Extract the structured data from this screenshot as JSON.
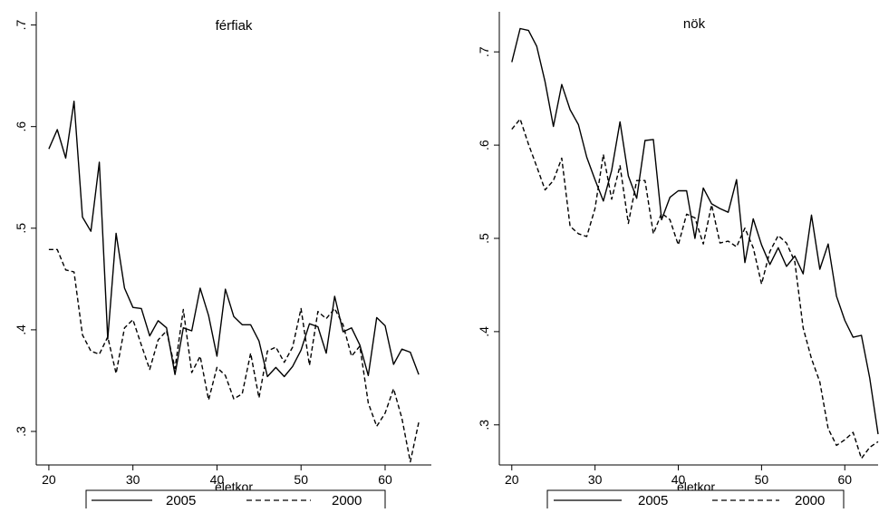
{
  "chart_data": [
    {
      "type": "line",
      "title": "férfiak",
      "xlabel": "életkor",
      "ylabel": "",
      "xlim": [
        18.5,
        65.5
      ],
      "ylim": [
        0.267,
        0.713
      ],
      "xticks": [
        20,
        30,
        40,
        50,
        60
      ],
      "xtick_labels": [
        "20",
        "30",
        "40",
        "50",
        "60"
      ],
      "yticks": [
        0.3,
        0.4,
        0.5,
        0.6,
        0.7
      ],
      "ytick_labels": [
        ".3",
        ".4",
        ".5",
        ".6",
        ".7"
      ],
      "legend": "bottom",
      "grid": false,
      "x": [
        20,
        21,
        22,
        23,
        24,
        25,
        26,
        27,
        28,
        29,
        30,
        31,
        32,
        33,
        34,
        35,
        36,
        37,
        38,
        39,
        40,
        41,
        42,
        43,
        44,
        45,
        46,
        47,
        48,
        49,
        50,
        51,
        52,
        53,
        54,
        55,
        56,
        57,
        58,
        59,
        60,
        61,
        62,
        63,
        64
      ],
      "series": [
        {
          "name": "2005",
          "style": "solid",
          "values": [
            0.578,
            0.597,
            0.569,
            0.625,
            0.511,
            0.497,
            0.565,
            0.391,
            0.495,
            0.441,
            0.422,
            0.421,
            0.394,
            0.409,
            0.402,
            0.356,
            0.402,
            0.399,
            0.441,
            0.414,
            0.374,
            0.44,
            0.413,
            0.405,
            0.405,
            0.389,
            0.354,
            0.363,
            0.354,
            0.364,
            0.38,
            0.406,
            0.403,
            0.377,
            0.433,
            0.398,
            0.402,
            0.385,
            0.355,
            0.412,
            0.404,
            0.366,
            0.381,
            0.378,
            0.356
          ]
        },
        {
          "name": "2000",
          "style": "dashed",
          "values": [
            0.479,
            0.479,
            0.459,
            0.457,
            0.395,
            0.379,
            0.376,
            0.393,
            0.357,
            0.402,
            0.41,
            0.385,
            0.361,
            0.39,
            0.399,
            0.362,
            0.42,
            0.358,
            0.374,
            0.331,
            0.363,
            0.355,
            0.332,
            0.337,
            0.377,
            0.333,
            0.379,
            0.383,
            0.368,
            0.383,
            0.421,
            0.365,
            0.418,
            0.411,
            0.421,
            0.405,
            0.374,
            0.384,
            0.328,
            0.305,
            0.318,
            0.342,
            0.313,
            0.27,
            0.309
          ]
        }
      ]
    },
    {
      "type": "line",
      "title": "nök",
      "xlabel": "életkor",
      "ylabel": "",
      "xlim": [
        18.5,
        64.0
      ],
      "ylim": [
        0.257,
        0.743
      ],
      "xticks": [
        20,
        30,
        40,
        50,
        60
      ],
      "xtick_labels": [
        "20",
        "30",
        "40",
        "50",
        "60"
      ],
      "yticks": [
        0.3,
        0.4,
        0.5,
        0.6,
        0.7
      ],
      "ytick_labels": [
        ".3",
        ".4",
        ".5",
        ".6",
        ".7"
      ],
      "legend": "bottom",
      "grid": false,
      "x": [
        20,
        21,
        22,
        23,
        24,
        25,
        26,
        27,
        28,
        29,
        30,
        31,
        32,
        33,
        34,
        35,
        36,
        37,
        38,
        39,
        40,
        41,
        42,
        43,
        44,
        45,
        46,
        47,
        48,
        49,
        50,
        51,
        52,
        53,
        54,
        55,
        56,
        57,
        58,
        59,
        60,
        61,
        62,
        63,
        64
      ],
      "series": [
        {
          "name": "2005",
          "style": "solid",
          "values": [
            0.689,
            0.725,
            0.723,
            0.706,
            0.668,
            0.62,
            0.665,
            0.638,
            0.622,
            0.587,
            0.563,
            0.54,
            0.573,
            0.625,
            0.567,
            0.543,
            0.605,
            0.606,
            0.52,
            0.544,
            0.551,
            0.551,
            0.5,
            0.554,
            0.537,
            0.532,
            0.528,
            0.563,
            0.474,
            0.521,
            0.493,
            0.472,
            0.49,
            0.47,
            0.481,
            0.462,
            0.525,
            0.467,
            0.494,
            0.438,
            0.412,
            0.394,
            0.396,
            0.35,
            0.29
          ]
        },
        {
          "name": "2000",
          "style": "dashed",
          "values": [
            0.617,
            0.628,
            0.601,
            0.577,
            0.552,
            0.562,
            0.586,
            0.513,
            0.505,
            0.502,
            0.532,
            0.59,
            0.542,
            0.578,
            0.516,
            0.562,
            0.562,
            0.505,
            0.527,
            0.52,
            0.493,
            0.526,
            0.522,
            0.494,
            0.536,
            0.495,
            0.497,
            0.491,
            0.511,
            0.49,
            0.451,
            0.486,
            0.503,
            0.495,
            0.475,
            0.404,
            0.371,
            0.346,
            0.296,
            0.278,
            0.284,
            0.292,
            0.264,
            0.276,
            0.282
          ]
        }
      ]
    }
  ]
}
